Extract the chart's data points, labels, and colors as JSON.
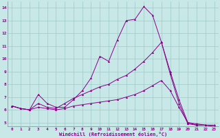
{
  "xlabel": "Windchill (Refroidissement éolien,°C)",
  "background_color": "#c8e8e8",
  "line_color": "#880088",
  "grid_color": "#a0c8c8",
  "xlim": [
    -0.5,
    23.5
  ],
  "ylim": [
    4.7,
    14.5
  ],
  "xticks": [
    0,
    1,
    2,
    3,
    4,
    5,
    6,
    7,
    8,
    9,
    10,
    11,
    12,
    13,
    14,
    15,
    16,
    17,
    18,
    19,
    20,
    21,
    22,
    23
  ],
  "yticks": [
    5,
    6,
    7,
    8,
    9,
    10,
    11,
    12,
    13,
    14
  ],
  "lines": [
    {
      "x": [
        0,
        1,
        2,
        3,
        4,
        5,
        6,
        7,
        8,
        9,
        10,
        11,
        12,
        13,
        14,
        15,
        16,
        17,
        18,
        19,
        20,
        21,
        22,
        23
      ],
      "y": [
        6.3,
        6.1,
        6.0,
        7.2,
        6.5,
        6.2,
        6.2,
        6.8,
        7.5,
        8.5,
        10.2,
        9.8,
        11.5,
        13.0,
        13.1,
        14.1,
        13.4,
        11.3,
        9.0,
        6.8,
        5.0,
        4.8,
        4.8,
        4.8
      ]
    },
    {
      "x": [
        0,
        1,
        2,
        3,
        4,
        5,
        6,
        7,
        8,
        9,
        10,
        11,
        12,
        13,
        14,
        15,
        16,
        17,
        18,
        19,
        20,
        21,
        22,
        23
      ],
      "y": [
        6.3,
        6.1,
        6.0,
        6.5,
        6.2,
        6.1,
        6.5,
        6.9,
        7.2,
        7.5,
        7.8,
        8.0,
        8.4,
        8.7,
        9.2,
        9.8,
        10.5,
        11.3,
        8.8,
        6.5,
        4.9,
        4.8,
        4.8,
        4.7
      ]
    },
    {
      "x": [
        0,
        1,
        2,
        3,
        4,
        5,
        6,
        7,
        8,
        9,
        10,
        11,
        12,
        13,
        14,
        15,
        16,
        17,
        18,
        19,
        20,
        21,
        22,
        23
      ],
      "y": [
        6.3,
        6.1,
        6.0,
        6.2,
        6.1,
        6.0,
        6.1,
        6.3,
        6.4,
        6.5,
        6.6,
        6.7,
        6.8,
        7.0,
        7.2,
        7.5,
        7.9,
        8.3,
        7.5,
        6.2,
        5.0,
        4.9,
        4.8,
        4.7
      ]
    }
  ]
}
